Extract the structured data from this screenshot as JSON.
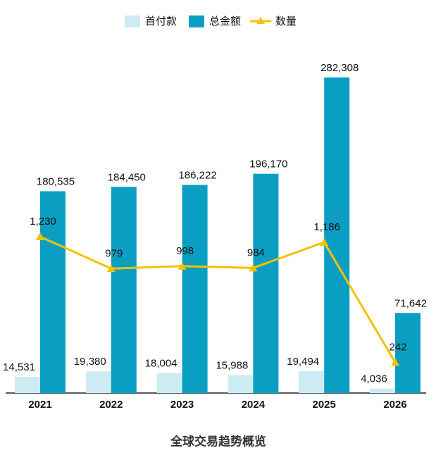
{
  "chart_data": {
    "type": "bar",
    "title": "全球交易趋势概览",
    "categories": [
      "2021",
      "2022",
      "2023",
      "2024",
      "2025",
      "2026"
    ],
    "series": [
      {
        "name": "首付款",
        "color": "#cdebf3",
        "values": [
          14531,
          19380,
          18004,
          15988,
          19494,
          4036
        ]
      },
      {
        "name": "总金额",
        "color": "#0a9fc2",
        "values": [
          180535,
          184450,
          186222,
          196170,
          282308,
          71642
        ]
      },
      {
        "name": "数量",
        "type": "line",
        "color": "#f5c100",
        "values": [
          1230,
          979,
          998,
          984,
          1186,
          242
        ]
      }
    ],
    "value_labels": [
      [
        "14,531",
        "19,380",
        "18,004",
        "15,988",
        "19,494",
        "4,036"
      ],
      [
        "180,535",
        "184,450",
        "186,222",
        "196,170",
        "282,308",
        "71,642"
      ],
      [
        "1,230",
        "979",
        "998",
        "984",
        "1,186",
        "242"
      ]
    ],
    "legend": "top"
  }
}
